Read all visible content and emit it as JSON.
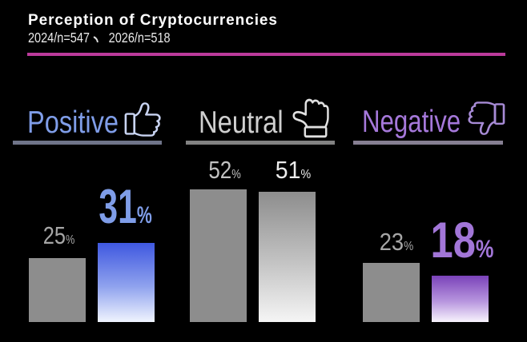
{
  "title": "Perception of Cryptocurrencies",
  "subtitle": {
    "text": "2024/n=547、 2026/n=518",
    "left": "2024/n=547",
    "separator": "、",
    "right": "2026/n=518"
  },
  "colors": {
    "background": "#000000",
    "title_text": "#ffffff",
    "top_rule": "#bb3a9b",
    "positive_accent": "#7f9de8",
    "positive_bar_top": "#3f58e0",
    "neutral_accent": "#cfcfcf",
    "neutral_bar": "#8d8d8d",
    "negative_accent": "#a276d8",
    "negative_bar_top": "#7a42b9",
    "muted_value_text": "#a6a6a6"
  },
  "chart_data": {
    "type": "bar",
    "title": "Perception of Cryptocurrencies",
    "subtitle": "2024/n=547、 2026/n=518",
    "categories": [
      "Positive",
      "Neutral",
      "Negative"
    ],
    "series": [
      {
        "name": "2024",
        "values": [
          25,
          52,
          23
        ]
      },
      {
        "name": "2026",
        "values": [
          31,
          51,
          18
        ]
      }
    ],
    "unit": "%",
    "ylim": [
      0,
      100
    ],
    "grid": false,
    "legend": "none",
    "value_labels": true
  },
  "groups": [
    {
      "label": "Positive",
      "icon": "thumbs-up-icon",
      "values": [
        {
          "number": "25",
          "unit": "%",
          "emphasized": false
        },
        {
          "number": "31",
          "unit": "%",
          "emphasized": true
        }
      ]
    },
    {
      "label": "Neutral",
      "icon": "thumb-sideways-icon",
      "values": [
        {
          "number": "52",
          "unit": "%",
          "emphasized": false
        },
        {
          "number": "51",
          "unit": "%",
          "emphasized": false
        }
      ]
    },
    {
      "label": "Negative",
      "icon": "thumbs-down-icon",
      "values": [
        {
          "number": "23",
          "unit": "%",
          "emphasized": false
        },
        {
          "number": "18",
          "unit": "%",
          "emphasized": true
        }
      ]
    }
  ]
}
